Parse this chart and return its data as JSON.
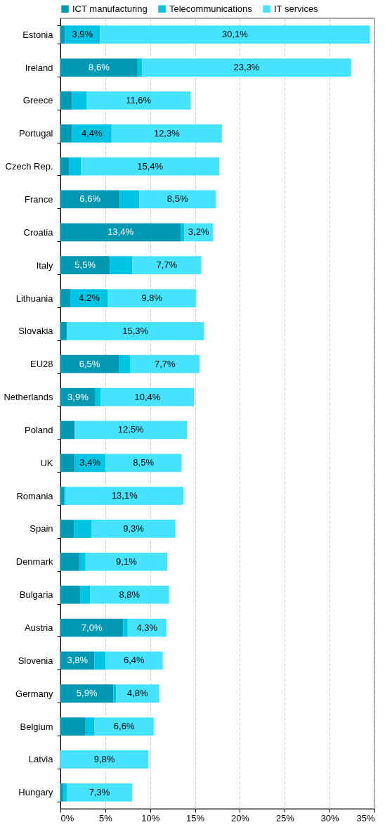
{
  "chart_data": {
    "type": "bar",
    "orientation": "horizontal",
    "stacked": true,
    "categories": [
      "Estonia",
      "Ireland",
      "Greece",
      "Portugal",
      "Czech Rep.",
      "France",
      "Croatia",
      "Italy",
      "Lithuania",
      "Slovakia",
      "EU28",
      "Netherlands",
      "Poland",
      "UK",
      "Romania",
      "Spain",
      "Denmark",
      "Bulgaria",
      "Austria",
      "Slovenia",
      "Germany",
      "Belgium",
      "Latvia",
      "Hungary"
    ],
    "series": [
      {
        "name": "ICT manufacturing",
        "color": "#0099b4",
        "values": [
          0.5,
          8.6,
          1.3,
          1.3,
          1.0,
          6.6,
          13.4,
          5.5,
          1.1,
          0.7,
          6.5,
          3.9,
          1.6,
          1.6,
          0.4,
          1.5,
          2.1,
          2.2,
          7.0,
          3.8,
          5.9,
          2.8,
          null,
          0.3
        ],
        "value_labels": [
          null,
          "8,6%",
          null,
          null,
          null,
          "6,6%",
          "13,4%",
          "5,5%",
          null,
          null,
          "6,5%",
          "3,9%",
          null,
          null,
          null,
          null,
          null,
          null,
          "7,0%",
          "3,8%",
          "5,9%",
          null,
          null,
          null
        ]
      },
      {
        "name": "Telecommunications",
        "color": "#00c4e4",
        "values": [
          3.9,
          0.5,
          1.6,
          4.4,
          1.3,
          2.2,
          0.4,
          2.5,
          4.2,
          null,
          1.3,
          0.6,
          null,
          3.4,
          0.2,
          2.0,
          0.7,
          1.1,
          0.5,
          1.2,
          0.3,
          1.0,
          null,
          0.4
        ],
        "value_labels": [
          "3,9%",
          null,
          null,
          "4,4%",
          null,
          null,
          null,
          null,
          "4,2%",
          null,
          null,
          null,
          null,
          "3,4%",
          null,
          null,
          null,
          null,
          null,
          null,
          null,
          null,
          null,
          null
        ]
      },
      {
        "name": "IT services",
        "color": "#45e3ff",
        "values": [
          30.1,
          23.3,
          11.6,
          12.3,
          15.4,
          8.5,
          3.2,
          7.7,
          9.8,
          15.3,
          7.7,
          10.4,
          12.5,
          8.5,
          13.1,
          9.3,
          9.1,
          8.8,
          4.3,
          6.4,
          4.8,
          6.6,
          9.8,
          7.3
        ],
        "value_labels": [
          "30,1%",
          "23,3%",
          "11,6%",
          "12,3%",
          "15,4%",
          "8,5%",
          "3,2%",
          "7,7%",
          "9,8%",
          "15,3%",
          "7,7%",
          "10,4%",
          "12,5%",
          "8,5%",
          "13,1%",
          "9,3%",
          "9,1%",
          "8,8%",
          "4,3%",
          "6,4%",
          "4,8%",
          "6,6%",
          "9,8%",
          "7,3%"
        ]
      }
    ],
    "xlim": [
      0,
      35
    ],
    "xticks": [
      {
        "value": 0,
        "label": "0%"
      },
      {
        "value": 5,
        "label": "5%"
      },
      {
        "value": 10,
        "label": "10%"
      },
      {
        "value": 15,
        "label": "15%"
      },
      {
        "value": 20,
        "label": "20%"
      },
      {
        "value": 25,
        "label": "25%"
      },
      {
        "value": 30,
        "label": "30%"
      },
      {
        "value": 35,
        "label": "35%"
      }
    ],
    "grid": "x",
    "legend": "top"
  }
}
